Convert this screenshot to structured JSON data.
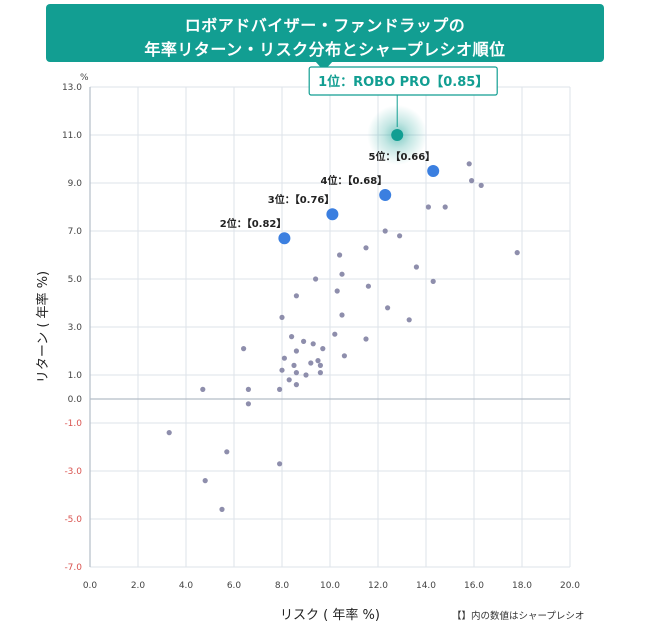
{
  "header": {
    "line1": "ロボアドバイザー・ファンドラップの",
    "line2": "年率リターン・リスク分布とシャープレシオ順位"
  },
  "note": "【】内の数値はシャープレシオ",
  "colors": {
    "banner": "#129e92",
    "highlight_teal": "#129e92",
    "highlight_blue": "#3b7fe0",
    "point_gray": "#8e8eac",
    "negative_tick": "#d9534f",
    "grid": "#dde3ea"
  },
  "chart_data": {
    "type": "scatter",
    "xlabel": "リスク ( 年率 %)",
    "ylabel": "リターン ( 年率 %)",
    "y_unit": "%",
    "xlim": [
      0,
      20
    ],
    "ylim": [
      -7,
      13
    ],
    "x_ticks": [
      "0.0",
      "2.0",
      "4.0",
      "6.0",
      "8.0",
      "10.0",
      "12.0",
      "14.0",
      "16.0",
      "18.0",
      "20.0"
    ],
    "y_ticks": [
      "13.0",
      "11.0",
      "9.0",
      "7.0",
      "5.0",
      "3.0",
      "1.0",
      "0.0",
      "-1.0",
      "-3.0",
      "-5.0",
      "-7.0"
    ],
    "grid": true,
    "highlights": [
      {
        "label": "1位：ROBO PRO【0.85】",
        "x": 12.8,
        "y": 11.0
      },
      {
        "label": "2位：【0.82】",
        "x": 8.1,
        "y": 6.7
      },
      {
        "label": "3位：【0.76】",
        "x": 10.1,
        "y": 7.7
      },
      {
        "label": "4位：【0.68】",
        "x": 12.3,
        "y": 8.5
      },
      {
        "label": "5位：【0.66】",
        "x": 14.3,
        "y": 9.5
      }
    ],
    "points": [
      [
        3.3,
        -1.4
      ],
      [
        4.7,
        0.4
      ],
      [
        4.8,
        -3.4
      ],
      [
        5.5,
        -4.6
      ],
      [
        5.7,
        -2.2
      ],
      [
        6.4,
        2.1
      ],
      [
        6.6,
        0.4
      ],
      [
        6.6,
        -0.2
      ],
      [
        7.9,
        -2.7
      ],
      [
        7.9,
        0.4
      ],
      [
        8.0,
        1.2
      ],
      [
        8.0,
        3.4
      ],
      [
        8.1,
        1.7
      ],
      [
        8.3,
        0.8
      ],
      [
        8.4,
        2.6
      ],
      [
        8.5,
        1.4
      ],
      [
        8.6,
        1.1
      ],
      [
        8.6,
        4.3
      ],
      [
        8.6,
        2.0
      ],
      [
        8.6,
        0.6
      ],
      [
        8.9,
        2.4
      ],
      [
        9.0,
        1.0
      ],
      [
        9.2,
        1.5
      ],
      [
        9.3,
        2.3
      ],
      [
        9.4,
        5.0
      ],
      [
        9.5,
        1.6
      ],
      [
        9.6,
        1.4
      ],
      [
        9.6,
        1.1
      ],
      [
        9.7,
        2.1
      ],
      [
        10.2,
        2.7
      ],
      [
        10.3,
        4.5
      ],
      [
        10.4,
        6.0
      ],
      [
        10.5,
        3.5
      ],
      [
        10.5,
        5.2
      ],
      [
        10.6,
        1.8
      ],
      [
        11.5,
        6.3
      ],
      [
        11.5,
        2.5
      ],
      [
        11.6,
        4.7
      ],
      [
        12.3,
        7.0
      ],
      [
        12.4,
        3.8
      ],
      [
        12.9,
        6.8
      ],
      [
        13.3,
        3.3
      ],
      [
        13.6,
        5.5
      ],
      [
        14.1,
        8.0
      ],
      [
        14.3,
        4.9
      ],
      [
        14.8,
        8.0
      ],
      [
        15.8,
        9.8
      ],
      [
        15.9,
        9.1
      ],
      [
        16.3,
        8.9
      ],
      [
        17.8,
        6.1
      ]
    ]
  }
}
